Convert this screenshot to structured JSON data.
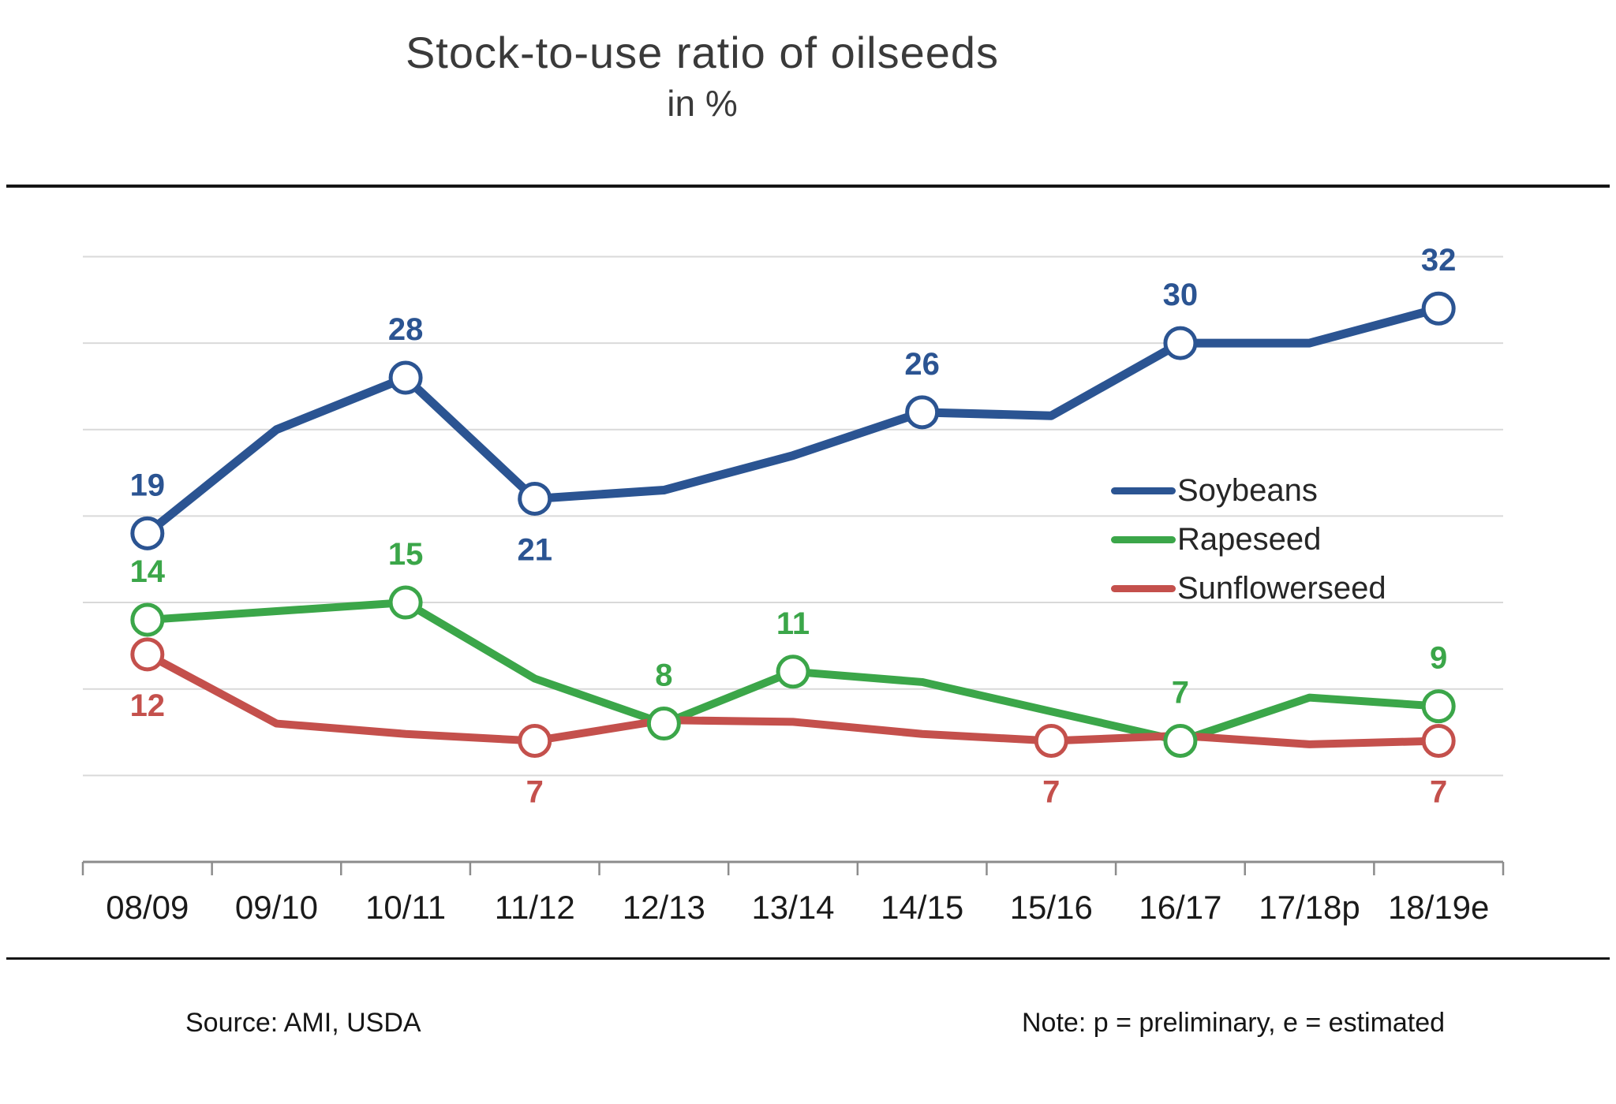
{
  "title": "Stock-to-use ratio of oilseeds",
  "subtitle": "in %",
  "footer": {
    "source": "Source: AMI, USDA",
    "note": "Note: p = preliminary, e = estimated"
  },
  "colors": {
    "soybeans": "#2B5492",
    "rapeseed": "#3BA649",
    "sunflowerseed": "#C4504C",
    "gridline": "#D9D9D9",
    "axis": "#8C8C8C",
    "category_text": "#1A1A1A",
    "title_text": "#3A3A3A"
  },
  "legend": {
    "items": [
      {
        "label": "Soybeans",
        "color": "#2B5492"
      },
      {
        "label": "Rapeseed",
        "color": "#3BA649"
      },
      {
        "label": "Sunflowerseed",
        "color": "#C4504C"
      }
    ]
  },
  "chart_data": {
    "type": "line",
    "categories": [
      "08/09",
      "09/10",
      "10/11",
      "11/12",
      "12/13",
      "13/14",
      "14/15",
      "15/16",
      "16/17",
      "17/18p",
      "18/19e"
    ],
    "series": [
      {
        "name": "Soybeans",
        "color": "#2B5492",
        "line_width": 11,
        "values": [
          19,
          25,
          28,
          21,
          21.5,
          23.5,
          26,
          25.8,
          30,
          30,
          32
        ],
        "marker_indices": [
          0,
          2,
          3,
          6,
          8,
          10
        ],
        "point_labels": [
          {
            "i": 0,
            "text": "19",
            "side": "above"
          },
          {
            "i": 2,
            "text": "28",
            "side": "above"
          },
          {
            "i": 3,
            "text": "21",
            "side": "below"
          },
          {
            "i": 6,
            "text": "26",
            "side": "above"
          },
          {
            "i": 8,
            "text": "30",
            "side": "above"
          },
          {
            "i": 10,
            "text": "32",
            "side": "above"
          }
        ]
      },
      {
        "name": "Rapeseed",
        "color": "#3BA649",
        "line_width": 10,
        "values": [
          14,
          14.5,
          15,
          10.6,
          8,
          11,
          10.4,
          8.7,
          7,
          9.5,
          9
        ],
        "marker_indices": [
          0,
          2,
          4,
          5,
          8,
          10
        ],
        "point_labels": [
          {
            "i": 0,
            "text": "14",
            "side": "above"
          },
          {
            "i": 2,
            "text": "15",
            "side": "above"
          },
          {
            "i": 4,
            "text": "8",
            "side": "above"
          },
          {
            "i": 5,
            "text": "11",
            "side": "above"
          },
          {
            "i": 8,
            "text": "7",
            "side": "above"
          },
          {
            "i": 10,
            "text": "9",
            "side": "above"
          }
        ]
      },
      {
        "name": "Sunflowerseed",
        "color": "#C4504C",
        "line_width": 10,
        "values": [
          12,
          8,
          7.4,
          7,
          8.2,
          8.1,
          7.4,
          7,
          7.3,
          6.8,
          7
        ],
        "marker_indices": [
          0,
          3,
          7,
          10
        ],
        "point_labels": [
          {
            "i": 0,
            "text": "12",
            "side": "below"
          },
          {
            "i": 3,
            "text": "7",
            "side": "below"
          },
          {
            "i": 7,
            "text": "7",
            "side": "below"
          },
          {
            "i": 10,
            "text": "7",
            "side": "below"
          }
        ]
      }
    ],
    "ylim": [
      0,
      40
    ],
    "gridline_values": [
      5,
      10,
      15,
      20,
      25,
      30,
      35
    ],
    "grid": true,
    "y_axis_labels_shown": false,
    "legend_position": "inside-right",
    "unlabeled_values_estimated": true
  }
}
